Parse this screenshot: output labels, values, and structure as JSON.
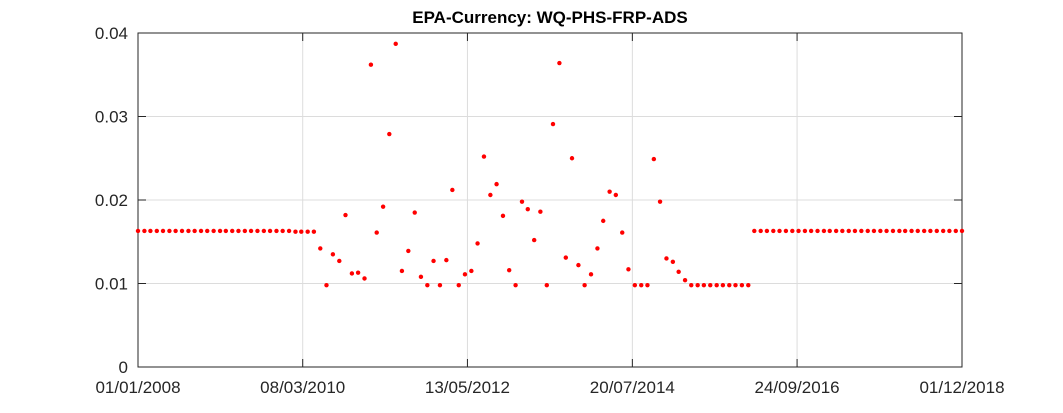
{
  "chart_data": {
    "type": "scatter",
    "title": "EPA-Currency: WQ-PHS-FRP-ADS",
    "xlabel": "",
    "ylabel": "",
    "x_axis_type": "date",
    "xlim": [
      "2008-01-01",
      "2018-12-01"
    ],
    "ylim": [
      0,
      0.04
    ],
    "grid": true,
    "marker_color": "#ff0000",
    "x_ticks": [
      {
        "label": "01/01/2008",
        "date": "2008-01-01"
      },
      {
        "label": "08/03/2010",
        "date": "2010-03-08"
      },
      {
        "label": "13/05/2012",
        "date": "2012-05-13"
      },
      {
        "label": "20/07/2014",
        "date": "2014-07-20"
      },
      {
        "label": "24/09/2016",
        "date": "2016-09-24"
      },
      {
        "label": "01/12/2018",
        "date": "2018-12-01"
      }
    ],
    "y_ticks": [
      {
        "label": "0",
        "value": 0
      },
      {
        "label": "0.01",
        "value": 0.01
      },
      {
        "label": "0.02",
        "value": 0.02
      },
      {
        "label": "0.03",
        "value": 0.03
      },
      {
        "label": "0.04",
        "value": 0.04
      }
    ],
    "series": [
      {
        "points": [
          {
            "x": "2008-01-01",
            "y": 0.0163
          },
          {
            "x": "2008-02-01",
            "y": 0.0163
          },
          {
            "x": "2008-03-01",
            "y": 0.0163
          },
          {
            "x": "2008-04-01",
            "y": 0.0163
          },
          {
            "x": "2008-05-01",
            "y": 0.0163
          },
          {
            "x": "2008-06-01",
            "y": 0.0163
          },
          {
            "x": "2008-07-01",
            "y": 0.0163
          },
          {
            "x": "2008-08-01",
            "y": 0.0163
          },
          {
            "x": "2008-09-01",
            "y": 0.0163
          },
          {
            "x": "2008-10-01",
            "y": 0.0163
          },
          {
            "x": "2008-11-01",
            "y": 0.0163
          },
          {
            "x": "2008-12-01",
            "y": 0.0163
          },
          {
            "x": "2009-01-01",
            "y": 0.0163
          },
          {
            "x": "2009-02-01",
            "y": 0.0163
          },
          {
            "x": "2009-03-01",
            "y": 0.0163
          },
          {
            "x": "2009-04-01",
            "y": 0.0163
          },
          {
            "x": "2009-05-01",
            "y": 0.0163
          },
          {
            "x": "2009-06-01",
            "y": 0.0163
          },
          {
            "x": "2009-07-01",
            "y": 0.0163
          },
          {
            "x": "2009-08-01",
            "y": 0.0163
          },
          {
            "x": "2009-09-01",
            "y": 0.0163
          },
          {
            "x": "2009-10-01",
            "y": 0.0163
          },
          {
            "x": "2009-11-01",
            "y": 0.0163
          },
          {
            "x": "2009-12-01",
            "y": 0.0163
          },
          {
            "x": "2010-01-01",
            "y": 0.0163
          },
          {
            "x": "2010-02-01",
            "y": 0.0162
          },
          {
            "x": "2010-03-01",
            "y": 0.0162
          },
          {
            "x": "2010-04-01",
            "y": 0.0162
          },
          {
            "x": "2010-05-01",
            "y": 0.0162
          },
          {
            "x": "2010-06-01",
            "y": 0.0142
          },
          {
            "x": "2010-07-01",
            "y": 0.0098
          },
          {
            "x": "2010-08-01",
            "y": 0.0135
          },
          {
            "x": "2010-09-01",
            "y": 0.0127
          },
          {
            "x": "2010-10-01",
            "y": 0.0182
          },
          {
            "x": "2010-11-01",
            "y": 0.0112
          },
          {
            "x": "2010-12-01",
            "y": 0.0113
          },
          {
            "x": "2011-01-01",
            "y": 0.0106
          },
          {
            "x": "2011-02-01",
            "y": 0.0362
          },
          {
            "x": "2011-03-01",
            "y": 0.0161
          },
          {
            "x": "2011-04-01",
            "y": 0.0192
          },
          {
            "x": "2011-05-01",
            "y": 0.0279
          },
          {
            "x": "2011-06-01",
            "y": 0.0387
          },
          {
            "x": "2011-07-01",
            "y": 0.0115
          },
          {
            "x": "2011-08-01",
            "y": 0.0139
          },
          {
            "x": "2011-09-01",
            "y": 0.0185
          },
          {
            "x": "2011-10-01",
            "y": 0.0108
          },
          {
            "x": "2011-11-01",
            "y": 0.0098
          },
          {
            "x": "2011-12-01",
            "y": 0.0127
          },
          {
            "x": "2012-01-01",
            "y": 0.0098
          },
          {
            "x": "2012-02-01",
            "y": 0.0128
          },
          {
            "x": "2012-03-01",
            "y": 0.0212
          },
          {
            "x": "2012-04-01",
            "y": 0.0098
          },
          {
            "x": "2012-05-01",
            "y": 0.0111
          },
          {
            "x": "2012-06-01",
            "y": 0.0115
          },
          {
            "x": "2012-07-01",
            "y": 0.0148
          },
          {
            "x": "2012-08-01",
            "y": 0.0252
          },
          {
            "x": "2012-09-01",
            "y": 0.0206
          },
          {
            "x": "2012-10-01",
            "y": 0.0219
          },
          {
            "x": "2012-11-01",
            "y": 0.0181
          },
          {
            "x": "2012-12-01",
            "y": 0.0116
          },
          {
            "x": "2013-01-01",
            "y": 0.0098
          },
          {
            "x": "2013-02-01",
            "y": 0.0198
          },
          {
            "x": "2013-03-01",
            "y": 0.0189
          },
          {
            "x": "2013-04-01",
            "y": 0.0152
          },
          {
            "x": "2013-05-01",
            "y": 0.0186
          },
          {
            "x": "2013-06-01",
            "y": 0.0098
          },
          {
            "x": "2013-07-01",
            "y": 0.0291
          },
          {
            "x": "2013-08-01",
            "y": 0.0364
          },
          {
            "x": "2013-09-01",
            "y": 0.0131
          },
          {
            "x": "2013-10-01",
            "y": 0.025
          },
          {
            "x": "2013-11-01",
            "y": 0.0122
          },
          {
            "x": "2013-12-01",
            "y": 0.0098
          },
          {
            "x": "2014-01-01",
            "y": 0.0111
          },
          {
            "x": "2014-02-01",
            "y": 0.0142
          },
          {
            "x": "2014-03-01",
            "y": 0.0175
          },
          {
            "x": "2014-04-01",
            "y": 0.021
          },
          {
            "x": "2014-05-01",
            "y": 0.0206
          },
          {
            "x": "2014-06-01",
            "y": 0.0161
          },
          {
            "x": "2014-07-01",
            "y": 0.0117
          },
          {
            "x": "2014-08-01",
            "y": 0.0098
          },
          {
            "x": "2014-09-01",
            "y": 0.0098
          },
          {
            "x": "2014-10-01",
            "y": 0.0098
          },
          {
            "x": "2014-11-01",
            "y": 0.0249
          },
          {
            "x": "2014-12-01",
            "y": 0.0198
          },
          {
            "x": "2015-01-01",
            "y": 0.013
          },
          {
            "x": "2015-02-01",
            "y": 0.0126
          },
          {
            "x": "2015-03-01",
            "y": 0.0114
          },
          {
            "x": "2015-04-01",
            "y": 0.0104
          },
          {
            "x": "2015-05-01",
            "y": 0.0098
          },
          {
            "x": "2015-06-01",
            "y": 0.0098
          },
          {
            "x": "2015-07-01",
            "y": 0.0098
          },
          {
            "x": "2015-08-01",
            "y": 0.0098
          },
          {
            "x": "2015-09-01",
            "y": 0.0098
          },
          {
            "x": "2015-10-01",
            "y": 0.0098
          },
          {
            "x": "2015-11-01",
            "y": 0.0098
          },
          {
            "x": "2015-12-01",
            "y": 0.0098
          },
          {
            "x": "2016-01-01",
            "y": 0.0098
          },
          {
            "x": "2016-02-01",
            "y": 0.0098
          },
          {
            "x": "2016-03-01",
            "y": 0.0163
          },
          {
            "x": "2016-04-01",
            "y": 0.0163
          },
          {
            "x": "2016-05-01",
            "y": 0.0163
          },
          {
            "x": "2016-06-01",
            "y": 0.0163
          },
          {
            "x": "2016-07-01",
            "y": 0.0163
          },
          {
            "x": "2016-08-01",
            "y": 0.0163
          },
          {
            "x": "2016-09-01",
            "y": 0.0163
          },
          {
            "x": "2016-10-01",
            "y": 0.0163
          },
          {
            "x": "2016-11-01",
            "y": 0.0163
          },
          {
            "x": "2016-12-01",
            "y": 0.0163
          },
          {
            "x": "2017-01-01",
            "y": 0.0163
          },
          {
            "x": "2017-02-01",
            "y": 0.0163
          },
          {
            "x": "2017-03-01",
            "y": 0.0163
          },
          {
            "x": "2017-04-01",
            "y": 0.0163
          },
          {
            "x": "2017-05-01",
            "y": 0.0163
          },
          {
            "x": "2017-06-01",
            "y": 0.0163
          },
          {
            "x": "2017-07-01",
            "y": 0.0163
          },
          {
            "x": "2017-08-01",
            "y": 0.0163
          },
          {
            "x": "2017-09-01",
            "y": 0.0163
          },
          {
            "x": "2017-10-01",
            "y": 0.0163
          },
          {
            "x": "2017-11-01",
            "y": 0.0163
          },
          {
            "x": "2017-12-01",
            "y": 0.0163
          },
          {
            "x": "2018-01-01",
            "y": 0.0163
          },
          {
            "x": "2018-02-01",
            "y": 0.0163
          },
          {
            "x": "2018-03-01",
            "y": 0.0163
          },
          {
            "x": "2018-04-01",
            "y": 0.0163
          },
          {
            "x": "2018-05-01",
            "y": 0.0163
          },
          {
            "x": "2018-06-01",
            "y": 0.0163
          },
          {
            "x": "2018-07-01",
            "y": 0.0163
          },
          {
            "x": "2018-08-01",
            "y": 0.0163
          },
          {
            "x": "2018-09-01",
            "y": 0.0163
          },
          {
            "x": "2018-10-01",
            "y": 0.0163
          },
          {
            "x": "2018-11-01",
            "y": 0.0163
          },
          {
            "x": "2018-12-01",
            "y": 0.0163
          }
        ]
      }
    ]
  }
}
